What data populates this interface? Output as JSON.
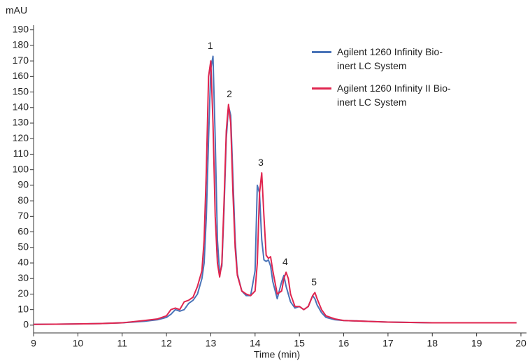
{
  "chart_data": {
    "type": "line",
    "title": "mAU",
    "x_label": "Time (min)",
    "xlim": [
      9,
      20
    ],
    "xticks": [
      9,
      10,
      11,
      12,
      13,
      14,
      15,
      16,
      17,
      18,
      19,
      20
    ],
    "ylim": [
      -5,
      193
    ],
    "yticks": [
      0,
      10,
      20,
      30,
      40,
      50,
      60,
      70,
      80,
      90,
      100,
      110,
      120,
      130,
      140,
      150,
      160,
      170,
      180,
      190
    ],
    "grid": false,
    "legend": "upper right",
    "x": [
      9,
      9.5,
      10,
      10.5,
      11,
      11.5,
      11.8,
      12.0,
      12.1,
      12.2,
      12.3,
      12.4,
      12.5,
      12.6,
      12.7,
      12.8,
      12.85,
      12.9,
      12.95,
      13.0,
      13.05,
      13.1,
      13.15,
      13.2,
      13.25,
      13.3,
      13.35,
      13.4,
      13.45,
      13.5,
      13.55,
      13.6,
      13.7,
      13.8,
      13.9,
      14.0,
      14.05,
      14.1,
      14.15,
      14.2,
      14.25,
      14.3,
      14.35,
      14.4,
      14.5,
      14.6,
      14.65,
      14.7,
      14.75,
      14.8,
      14.9,
      15.0,
      15.1,
      15.2,
      15.3,
      15.35,
      15.4,
      15.5,
      15.6,
      15.8,
      16.0,
      16.5,
      17,
      18,
      19,
      19.9
    ],
    "series": [
      {
        "name": "Agilent 1260 Infinity Bio-inert LC System",
        "color": "#4a74b8",
        "values": [
          0.5,
          0.6,
          0.8,
          1,
          1.5,
          2.5,
          3.5,
          5,
          7,
          10,
          9,
          10,
          14,
          16,
          20,
          30,
          40,
          70,
          120,
          165,
          173,
          120,
          55,
          33,
          38,
          75,
          120,
          141,
          135,
          95,
          55,
          33,
          22,
          19,
          19,
          35,
          90,
          85,
          55,
          42,
          41,
          42,
          38,
          28,
          17,
          28,
          32,
          25,
          20,
          15,
          11,
          12,
          10,
          12,
          19,
          17,
          13,
          8,
          5,
          3.5,
          3,
          2.5,
          2,
          1.5,
          1.5,
          1.5
        ]
      },
      {
        "name": "Agilent 1260 Infinity II Bio-inert LC System",
        "color": "#e0254f",
        "values": [
          0.5,
          0.6,
          0.8,
          1,
          1.5,
          3,
          4,
          6,
          10,
          11,
          10,
          15,
          16,
          18,
          25,
          35,
          55,
          100,
          160,
          170,
          130,
          70,
          40,
          31,
          40,
          80,
          125,
          142,
          130,
          85,
          50,
          32,
          22,
          20,
          19,
          22,
          40,
          85,
          98,
          70,
          45,
          43,
          44,
          35,
          20,
          22,
          30,
          34,
          30,
          20,
          12,
          12,
          10,
          12,
          19,
          21,
          17,
          10,
          6,
          4,
          3,
          2.5,
          2,
          1.5,
          1.5,
          1.5
        ]
      }
    ],
    "annotations": [
      {
        "text": "1",
        "x": 12.99,
        "y": 173
      },
      {
        "text": "2",
        "x": 13.42,
        "y": 142
      },
      {
        "text": "3",
        "x": 14.13,
        "y": 98
      },
      {
        "text": "4",
        "x": 14.68,
        "y": 34
      },
      {
        "text": "5",
        "x": 15.33,
        "y": 21
      }
    ]
  }
}
